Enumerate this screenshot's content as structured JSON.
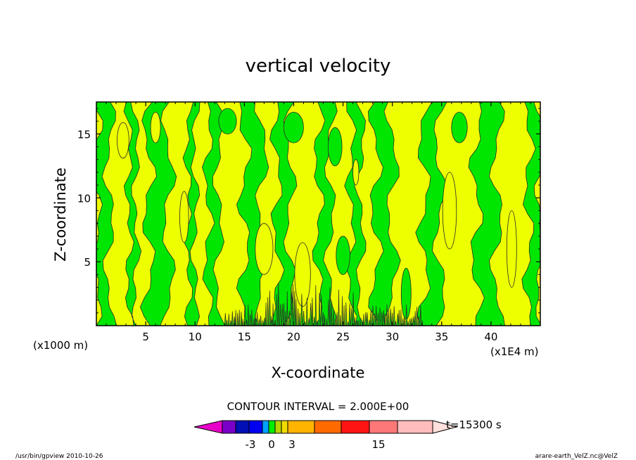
{
  "chart_data": {
    "type": "heatmap",
    "title": "vertical velocity",
    "xlabel": "X-coordinate",
    "ylabel": "Z-coordinate",
    "x_unit_left": "(x1000 m)",
    "x_unit_right": "(x1E4 m)",
    "xlim": [
      0,
      45
    ],
    "ylim": [
      0,
      17.5
    ],
    "x_ticks": [
      "5",
      "10",
      "15",
      "20",
      "25",
      "30",
      "35",
      "40"
    ],
    "y_ticks": [
      "5",
      "10",
      "15"
    ],
    "x_tick_values": [
      5,
      10,
      15,
      20,
      25,
      30,
      35,
      40
    ],
    "y_tick_values": [
      5,
      10,
      15
    ],
    "field_colors": {
      "positive": "#eeff00",
      "negative": "#00e600",
      "contour": "#2a2a2a"
    },
    "green_bands": [
      [
        0.0,
        1.3
      ],
      [
        3.3,
        4.0
      ],
      [
        5.3,
        7.3
      ],
      [
        9.3,
        10.0
      ],
      [
        11.3,
        12.4
      ],
      [
        15.0,
        16.8
      ],
      [
        18.3,
        19.6
      ],
      [
        22.5,
        23.7
      ],
      [
        25.8,
        26.8
      ],
      [
        28.3,
        30.0
      ],
      [
        33.2,
        34.8
      ],
      [
        38.5,
        40.6
      ],
      [
        43.8,
        45.0
      ]
    ],
    "yellow_patches": [
      [
        2.7,
        14.5,
        0.6,
        1.4
      ],
      [
        8.9,
        8.5,
        0.45,
        2.0
      ],
      [
        17.0,
        6.0,
        0.9,
        2.0
      ],
      [
        20.9,
        4.0,
        0.8,
        2.5
      ],
      [
        35.8,
        9.0,
        0.7,
        3.0
      ],
      [
        42.1,
        6.0,
        0.5,
        3.0
      ],
      [
        6.0,
        15.5,
        0.5,
        1.2
      ],
      [
        26.3,
        12.0,
        0.3,
        1.0
      ]
    ],
    "green_patches": [
      [
        13.3,
        16.0,
        0.9,
        1.0
      ],
      [
        25.0,
        5.5,
        0.7,
        1.5
      ],
      [
        31.4,
        2.5,
        0.5,
        2.0
      ],
      [
        36.8,
        15.5,
        0.8,
        1.2
      ],
      [
        20.0,
        15.5,
        1.0,
        1.2
      ],
      [
        24.2,
        14.0,
        0.7,
        1.5
      ]
    ],
    "contour_interval_label": "CONTOUR INTERVAL = 2.000E+00",
    "colorbar": {
      "colors": [
        "#e800c8",
        "#7a00c8",
        "#0010b4",
        "#0000f0",
        "#00a0ff",
        "#00ee00",
        "#b6d400",
        "#eedc00",
        "#ffb400",
        "#ff6a00",
        "#ff1414",
        "#ff7878",
        "#ffbcbc",
        "#ffe0dc"
      ],
      "labels": [
        "-3",
        "0",
        "3",
        "15"
      ],
      "time_label": "t=15300 s"
    },
    "footer_left": "/usr/bin/gpview   2010-10-26",
    "footer_right": "arare-earth_VelZ.nc@VelZ"
  }
}
